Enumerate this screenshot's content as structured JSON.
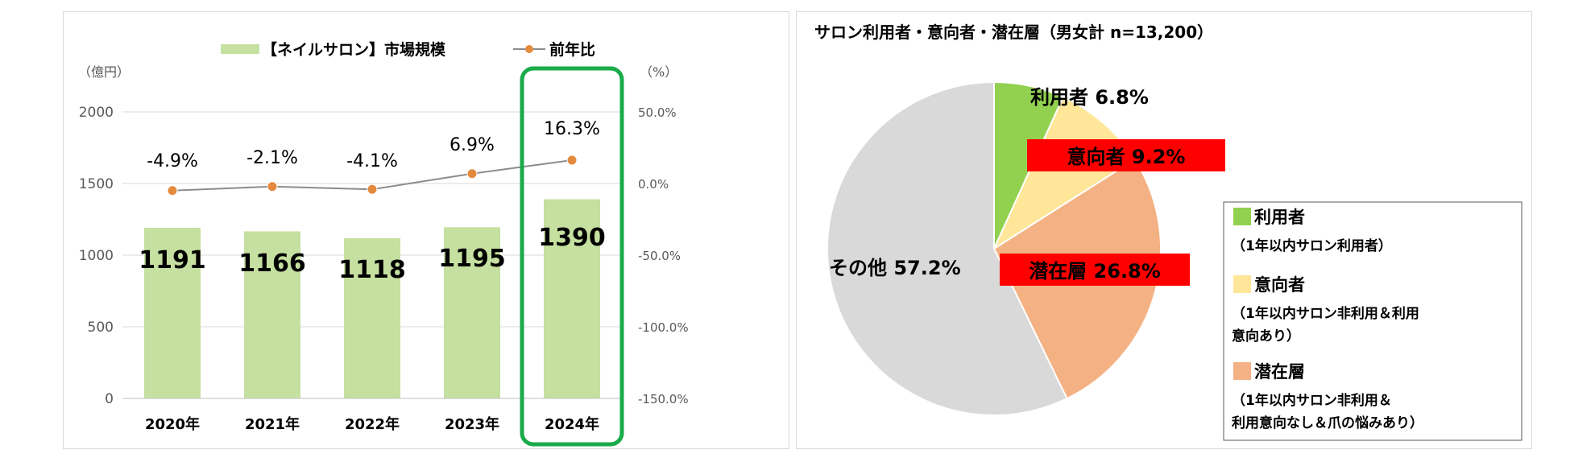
{
  "colors": {
    "bar": "#c5e0a0",
    "line": "#8c8c8c",
    "marker": "#e48a3e",
    "highlight": "#1aab4a",
    "grid": "#d9d9d9",
    "slice_user": "#92d050",
    "slice_intent": "#ffe699",
    "slice_latent": "#f4b183",
    "slice_other": "#d9d9d9",
    "label_red": "#ff0000"
  },
  "chart_data": [
    {
      "type": "bar",
      "legend": {
        "bar_label": "【ネイルサロン】市場規模",
        "line_label": "前年比"
      },
      "y_left_unit": "（億円）",
      "y_right_unit": "（%）",
      "categories": [
        "2020年",
        "2021年",
        "2022年",
        "2023年",
        "2024年"
      ],
      "series": [
        {
          "name": "【ネイルサロン】市場規模",
          "values": [
            1191,
            1166,
            1118,
            1195,
            1390
          ],
          "axis": "left"
        },
        {
          "name": "前年比",
          "values": [
            -4.9,
            -2.1,
            -4.1,
            6.9,
            16.3
          ],
          "axis": "right",
          "type": "line"
        }
      ],
      "bar_labels": [
        "1191",
        "1166",
        "1118",
        "1195",
        "1390"
      ],
      "line_labels": [
        "-4.9%",
        "-2.1%",
        "-4.1%",
        "6.9%",
        "16.3%"
      ],
      "y_left": {
        "min": 0,
        "max": 2000,
        "ticks": [
          0,
          500,
          1000,
          1500,
          2000
        ],
        "tick_labels": [
          "0",
          "500",
          "1000",
          "1500",
          "2000"
        ]
      },
      "y_right": {
        "min": -150,
        "max": 50,
        "ticks": [
          -150,
          -100,
          -50,
          0,
          50
        ],
        "tick_labels": [
          "-150.0%",
          "-100.0%",
          "-50.0%",
          "0.0%",
          "50.0%"
        ]
      },
      "highlight_category": "2024年",
      "grid": true
    },
    {
      "type": "pie",
      "title": "サロン利用者・意向者・潜在層（男女計 n=13,200）",
      "slices": [
        {
          "name": "利用者",
          "value": 6.8,
          "label": "利用者 6.8%"
        },
        {
          "name": "意向者",
          "value": 9.2,
          "label": "意向者 9.2%"
        },
        {
          "name": "潜在層",
          "value": 26.8,
          "label": "潜在層 26.8%"
        },
        {
          "name": "その他",
          "value": 57.2,
          "label": "その他 57.2%"
        }
      ],
      "legend": [
        {
          "name": "利用者",
          "desc": [
            "（1年以内サロン利用者）"
          ]
        },
        {
          "name": "意向者",
          "desc": [
            "（1年以内サロン非利用＆利用",
            "意向あり）"
          ]
        },
        {
          "name": "潜在層",
          "desc": [
            "（1年以内サロン非利用＆",
            "利用意向なし＆爪の悩みあり）"
          ]
        }
      ]
    }
  ]
}
